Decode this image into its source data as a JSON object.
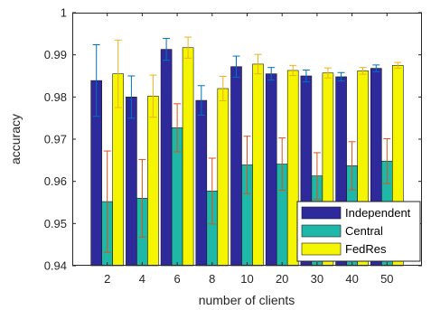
{
  "chart_data": {
    "type": "bar",
    "title": "",
    "xlabel": "number of clients",
    "ylabel": "accuracy",
    "categories": [
      "2",
      "4",
      "6",
      "8",
      "10",
      "20",
      "30",
      "40",
      "50"
    ],
    "ylim": [
      0.94,
      1.0
    ],
    "yticks": [
      0.94,
      0.95,
      0.96,
      0.97,
      0.98,
      0.99,
      1
    ],
    "ytick_labels": [
      "0.94",
      "0.95",
      "0.96",
      "0.97",
      "0.98",
      "0.99",
      "1"
    ],
    "grid": false,
    "legend_position": "bottom-right",
    "series": [
      {
        "name": "Independent",
        "color": "#2e2a9c",
        "error_color": "#0072bd",
        "values": [
          0.9839,
          0.98,
          0.9913,
          0.9792,
          0.9872,
          0.9855,
          0.985,
          0.9848,
          0.9868
        ],
        "errors": [
          0.0085,
          0.005,
          0.0026,
          0.0035,
          0.0025,
          0.0015,
          0.0014,
          0.001,
          0.0008
        ]
      },
      {
        "name": "Central",
        "color": "#1fb8a8",
        "error_color": "#d95319",
        "values": [
          0.9552,
          0.956,
          0.9727,
          0.9577,
          0.9639,
          0.9641,
          0.9613,
          0.9637,
          0.9648
        ],
        "errors": [
          0.012,
          0.0092,
          0.0057,
          0.0078,
          0.0068,
          0.0062,
          0.0055,
          0.0057,
          0.0053
        ]
      },
      {
        "name": "FedRes",
        "color": "#f5f500",
        "error_color": "#edb120",
        "values": [
          0.9855,
          0.9802,
          0.9917,
          0.982,
          0.9878,
          0.9863,
          0.9857,
          0.9862,
          0.9875
        ],
        "errors": [
          0.008,
          0.005,
          0.0025,
          0.0029,
          0.0023,
          0.0012,
          0.0012,
          0.0008,
          0.0007
        ]
      }
    ]
  }
}
